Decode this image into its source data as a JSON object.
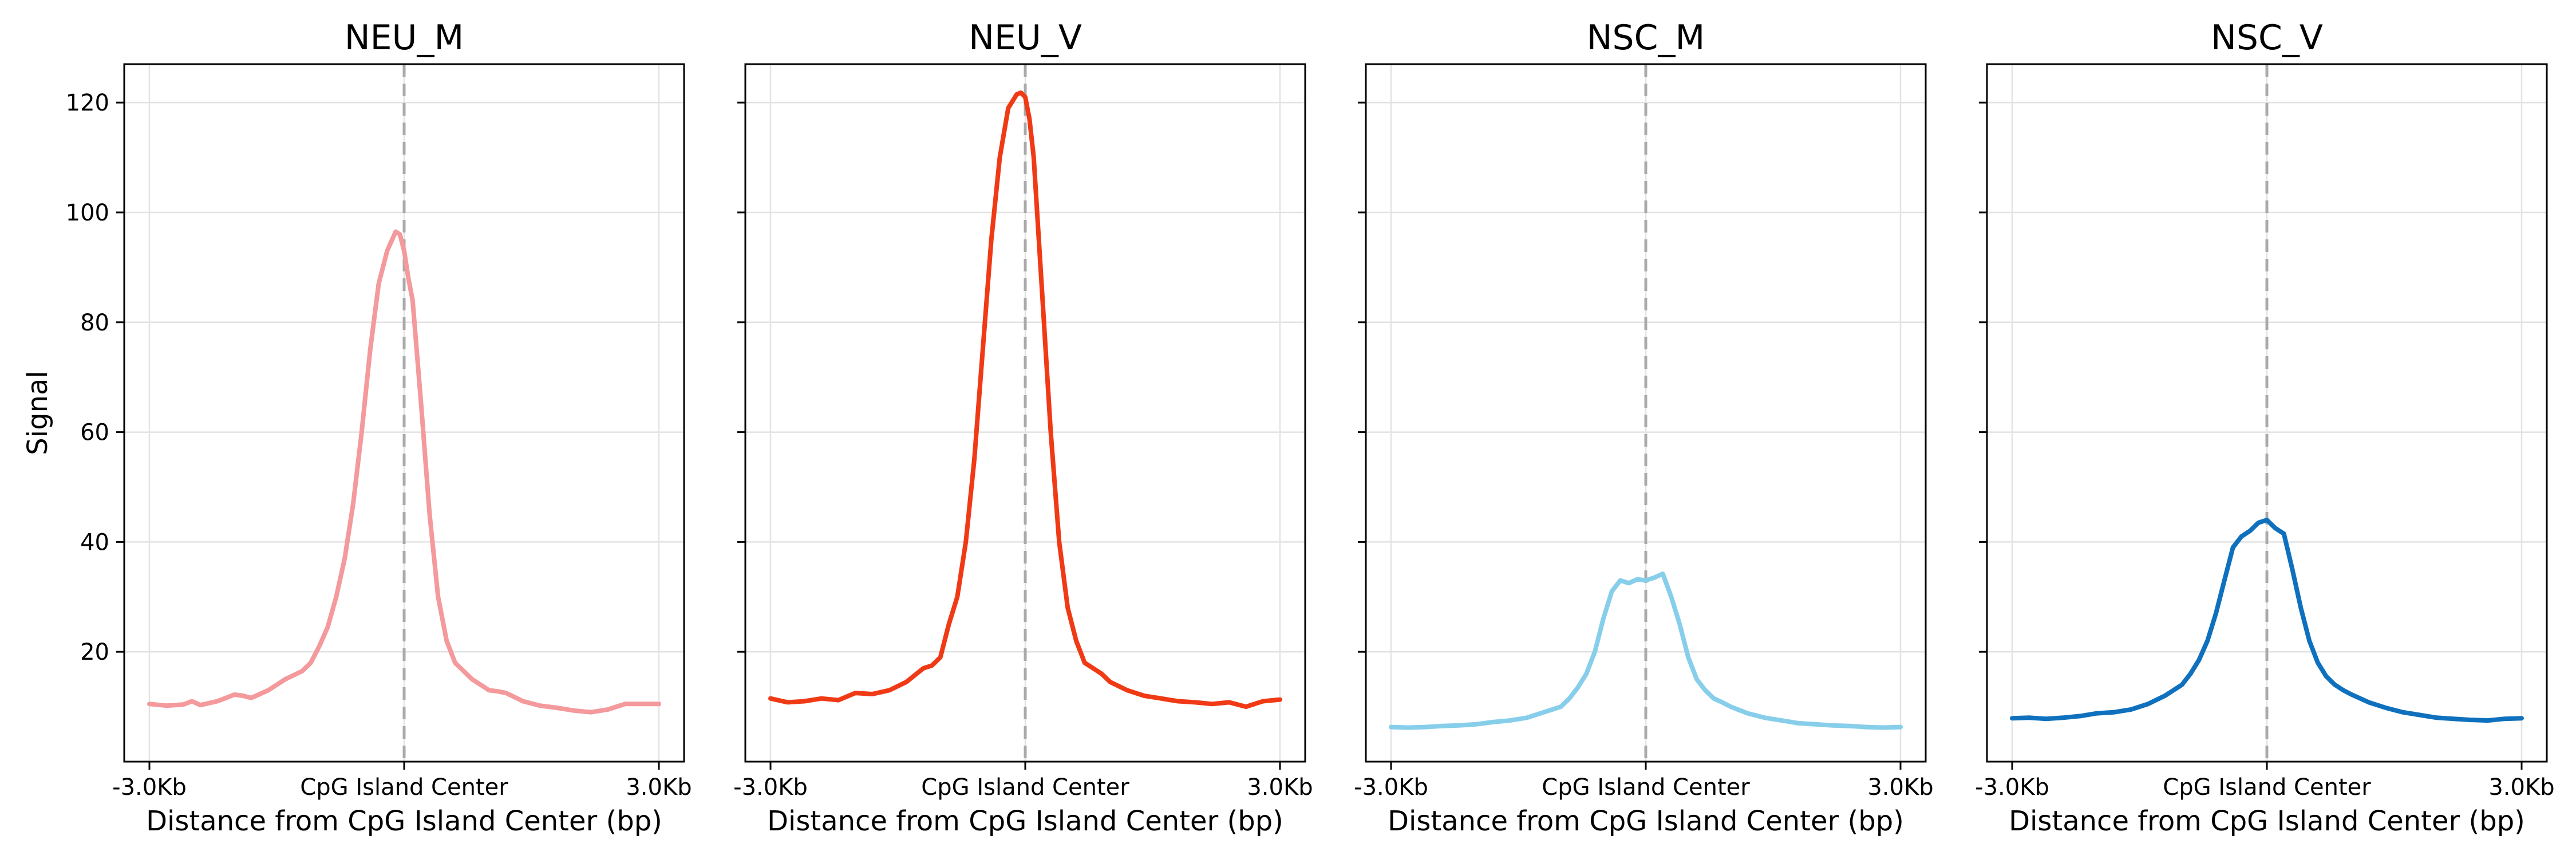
{
  "chart_data": [
    {
      "type": "line",
      "title": "NEU_M",
      "xlabel": "Distance from CpG Island Center (bp)",
      "ylabel": "Signal",
      "color": "#f4999c",
      "x_tick_labels": [
        "-3.0Kb",
        "CpG Island Center",
        "3.0Kb"
      ],
      "y_ticks": [
        20,
        40,
        60,
        80,
        100,
        120
      ],
      "xlim": [
        -3000,
        3000
      ],
      "ylim": [
        0,
        127
      ],
      "grid": true,
      "x": [
        -3000,
        -2800,
        -2600,
        -2500,
        -2400,
        -2200,
        -2000,
        -1900,
        -1800,
        -1600,
        -1400,
        -1200,
        -1100,
        -1000,
        -900,
        -800,
        -700,
        -600,
        -500,
        -400,
        -300,
        -200,
        -100,
        -50,
        0,
        50,
        100,
        200,
        300,
        400,
        500,
        600,
        700,
        800,
        900,
        1000,
        1100,
        1200,
        1400,
        1600,
        1800,
        2000,
        2200,
        2400,
        2600,
        2800,
        3000
      ],
      "values": [
        10.5,
        10.2,
        10.4,
        11,
        10.3,
        11,
        12.2,
        12,
        11.6,
        13,
        15,
        16.5,
        18,
        21,
        24.5,
        30,
        37,
        47,
        60,
        75,
        87,
        93,
        96.5,
        96,
        93,
        88,
        84,
        65,
        45,
        30,
        22,
        18,
        16.5,
        15,
        14,
        13,
        12.8,
        12.5,
        11,
        10.2,
        9.8,
        9.3,
        9,
        9.5,
        10.5,
        10.5,
        10.5
      ]
    },
    {
      "type": "line",
      "title": "NEU_V",
      "xlabel": "Distance from CpG Island Center (bp)",
      "ylabel": "",
      "color": "#f03a16",
      "x_tick_labels": [
        "-3.0Kb",
        "CpG Island Center",
        "3.0Kb"
      ],
      "y_ticks": [
        20,
        40,
        60,
        80,
        100,
        120
      ],
      "xlim": [
        -3000,
        3000
      ],
      "ylim": [
        0,
        127
      ],
      "grid": true,
      "x": [
        -3000,
        -2800,
        -2600,
        -2400,
        -2200,
        -2000,
        -1800,
        -1600,
        -1400,
        -1200,
        -1100,
        -1000,
        -900,
        -800,
        -700,
        -600,
        -500,
        -400,
        -300,
        -200,
        -100,
        -50,
        0,
        50,
        100,
        200,
        300,
        400,
        500,
        600,
        700,
        800,
        900,
        1000,
        1200,
        1400,
        1600,
        1800,
        2000,
        2200,
        2400,
        2600,
        2800,
        3000
      ],
      "values": [
        11.5,
        10.8,
        11,
        11.5,
        11.2,
        12.5,
        12.3,
        13,
        14.5,
        17,
        17.5,
        19,
        25,
        30,
        40,
        55,
        75,
        95,
        110,
        119,
        121.5,
        121.8,
        121,
        117,
        110,
        85,
        60,
        40,
        28,
        22,
        18,
        17,
        16,
        14.5,
        13,
        12,
        11.5,
        11,
        10.8,
        10.5,
        10.8,
        10,
        11,
        11.3
      ]
    },
    {
      "type": "line",
      "title": "NSC_M",
      "xlabel": "Distance from CpG Island Center (bp)",
      "ylabel": "",
      "color": "#87ceeb",
      "x_tick_labels": [
        "-3.0Kb",
        "CpG Island Center",
        "3.0Kb"
      ],
      "y_ticks": [
        20,
        40,
        60,
        80,
        100,
        120
      ],
      "xlim": [
        -3000,
        3000
      ],
      "ylim": [
        0,
        127
      ],
      "grid": true,
      "x": [
        -3000,
        -2800,
        -2600,
        -2400,
        -2200,
        -2000,
        -1800,
        -1600,
        -1400,
        -1200,
        -1000,
        -900,
        -800,
        -700,
        -600,
        -500,
        -400,
        -300,
        -200,
        -100,
        0,
        100,
        200,
        300,
        400,
        500,
        600,
        700,
        800,
        900,
        1000,
        1200,
        1400,
        1600,
        1800,
        2000,
        2200,
        2400,
        2600,
        2800,
        3000
      ],
      "values": [
        6.3,
        6.2,
        6.3,
        6.5,
        6.6,
        6.8,
        7.2,
        7.5,
        8,
        9,
        10,
        11.5,
        13.5,
        16,
        20,
        26,
        31,
        33,
        32.5,
        33.2,
        33,
        33.5,
        34.2,
        30,
        25,
        19,
        15,
        13,
        11.5,
        10.8,
        10,
        8.8,
        8,
        7.5,
        7,
        6.8,
        6.6,
        6.5,
        6.3,
        6.2,
        6.3
      ]
    },
    {
      "type": "line",
      "title": "NSC_V",
      "xlabel": "Distance from CpG Island Center (bp)",
      "ylabel": "",
      "color": "#0f71bd",
      "x_tick_labels": [
        "-3.0Kb",
        "CpG Island Center",
        "3.0Kb"
      ],
      "y_ticks": [
        20,
        40,
        60,
        80,
        100,
        120
      ],
      "xlim": [
        -3000,
        3000
      ],
      "ylim": [
        0,
        127
      ],
      "grid": true,
      "x": [
        -3000,
        -2800,
        -2600,
        -2400,
        -2200,
        -2000,
        -1800,
        -1600,
        -1400,
        -1200,
        -1000,
        -900,
        -800,
        -700,
        -600,
        -500,
        -400,
        -300,
        -200,
        -100,
        0,
        100,
        200,
        300,
        400,
        500,
        600,
        700,
        800,
        900,
        1000,
        1200,
        1400,
        1600,
        1800,
        2000,
        2200,
        2400,
        2600,
        2800,
        3000
      ],
      "values": [
        7.9,
        8,
        7.8,
        8,
        8.3,
        8.8,
        9,
        9.5,
        10.5,
        12,
        14,
        16,
        18.5,
        22,
        27,
        33,
        39,
        41,
        42,
        43.5,
        44,
        42.5,
        41.5,
        35,
        28,
        22,
        18,
        15.5,
        14,
        13,
        12.2,
        10.8,
        9.8,
        9,
        8.5,
        8,
        7.8,
        7.6,
        7.5,
        7.8,
        7.9
      ]
    }
  ]
}
